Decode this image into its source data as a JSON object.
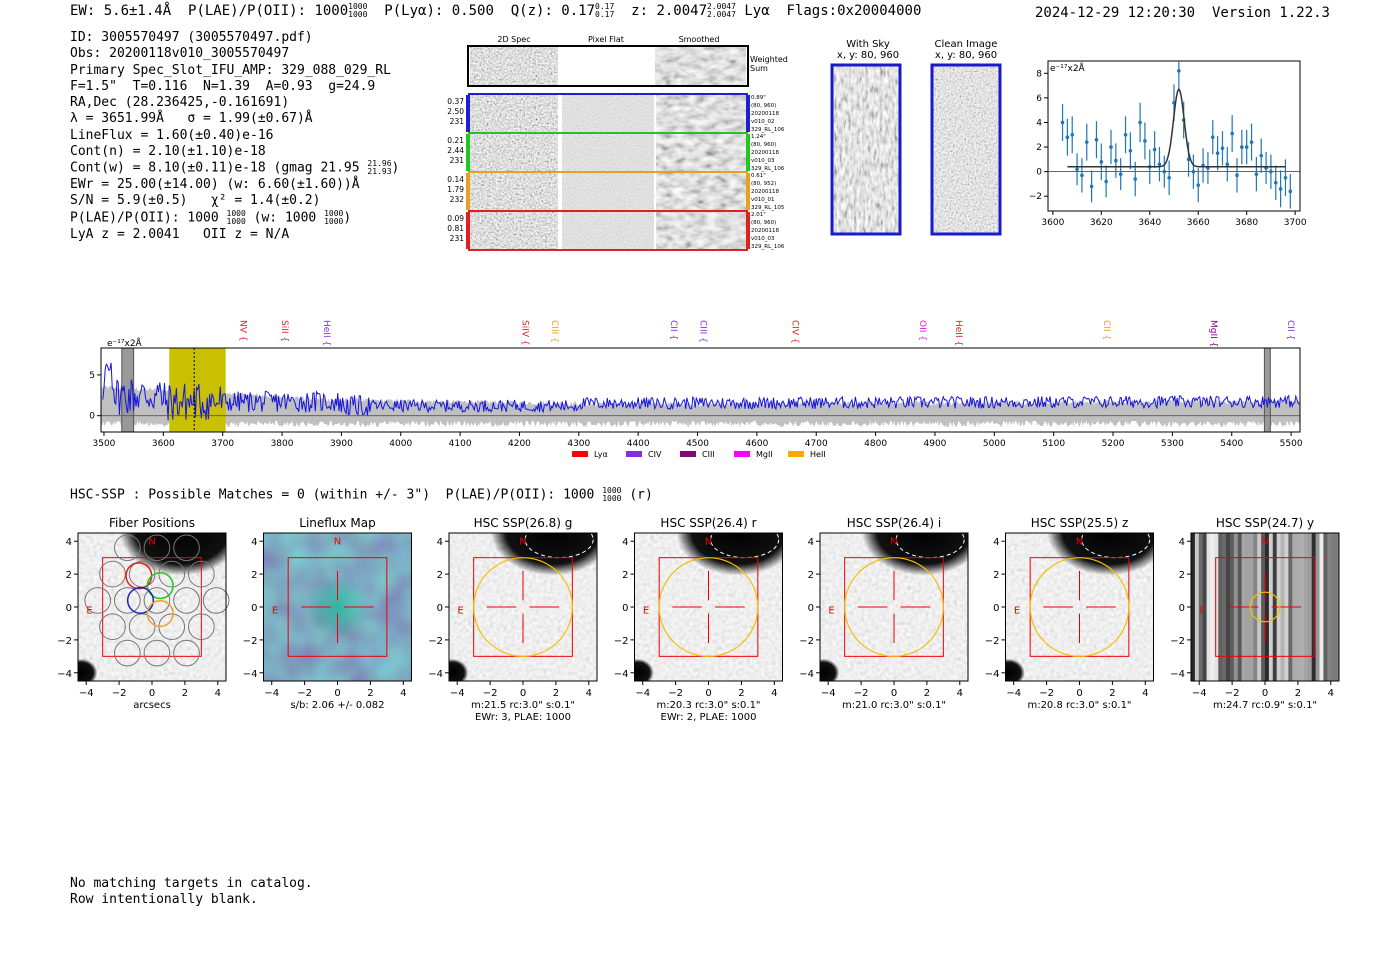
{
  "header": {
    "ew": "EW: 5.6±1.4Å",
    "plae": "P(LAE)/P(OII): 1000",
    "plae_hi": "1000",
    "plae_lo": "1000",
    "plya": "P(Lyα): 0.500",
    "qz": "Q(z): 0.17",
    "qz_hi": "0.17",
    "qz_lo": "0.17",
    "z": "z: 2.0047",
    "z_hi": "2.0047",
    "z_lo": "2.0047",
    "line": "Lyα",
    "flags": "Flags:0x20004000",
    "timestamp": "2024-12-29 12:20:30",
    "version": "Version 1.22.3"
  },
  "info": {
    "id": "ID: 3005570497 (3005570497.pdf)",
    "obs": "Obs: 20200118v010_3005570497",
    "primary": "Primary Spec_Slot_IFU_AMP: 329_088_029_RL",
    "fwhm": "F=1.5\"  T=0.116  N=1.39  A=0.93  g=24.9",
    "radec": "RA,Dec (28.236425,-0.161691)",
    "wave": "λ = 3651.99Å   σ = 1.99(±0.67)Å",
    "lineflux": "LineFlux = 1.60(±0.40)e-16",
    "contn": "Cont(n) = 2.10(±1.10)e-18",
    "contw": "Cont(w) = 8.10(±0.11)e-18 (gmag 21.95",
    "contw_hi": "21.96",
    "contw_lo": "21.93",
    "contw_end": ")",
    "ewr": "EWr = 25.00(±14.00) (w: 6.60(±1.60))Å",
    "sn": "S/N = 5.9(±0.5)   χ² = 1.4(±0.2)",
    "plae": "P(LAE)/P(OII): 1000",
    "plae_hi": "1000",
    "plae_lo": "1000",
    "plae_w": "(w: 1000",
    "plae_w_hi": "1000",
    "plae_w_lo": "1000",
    "plae_end": ")",
    "lyaz": "LyA z = 2.0041   OII z = N/A"
  },
  "cutouts": {
    "col_titles": [
      "2D Spec",
      "Pixel Flat",
      "Smoothed"
    ],
    "weighted_label": "Weighted Sum",
    "rows": [
      {
        "color": "#1f1fd0",
        "left": [
          "0.37",
          "2.50",
          "231"
        ],
        "right": [
          "0.89\"",
          "(80, 960)",
          "20200118",
          "v010_02",
          "329_RL_106"
        ]
      },
      {
        "color": "#22c522",
        "left": [
          "0.21",
          "2.44",
          "231"
        ],
        "right": [
          "1.24\"",
          "(80, 960)",
          "20200118",
          "v010_03",
          "329_RL_106"
        ]
      },
      {
        "color": "#e8a020",
        "left": [
          "0.14",
          "1.79",
          "232"
        ],
        "right": [
          "0.61\"",
          "(80, 952)",
          "20200118",
          "v010_01",
          "329_RL_105"
        ]
      },
      {
        "color": "#e02020",
        "left": [
          "0.09",
          "0.81",
          "231"
        ],
        "right": [
          "2.01\"",
          "(80, 960)",
          "20200118",
          "v010_03",
          "329_RL_106"
        ]
      }
    ],
    "with_sky_title": "With Sky",
    "with_sky_sub": "x, y: 80, 960",
    "clean_title": "Clean Image",
    "clean_sub": "x, y: 80, 960"
  },
  "hsc_line": {
    "text": "HSC-SSP : Possible Matches = 0 (within +/- 3\")  P(LAE)/P(OII): 1000",
    "hi": "1000",
    "lo": "1000",
    "end": "(r)"
  },
  "footer": {
    "line1": "No matching targets in catalog.",
    "line2": "Row intentionally blank."
  },
  "chart_data": [
    {
      "type": "scatter",
      "name": "zoom-spectrum",
      "ylabel": "e⁻¹⁷x2Å",
      "xlim": [
        3598,
        3702
      ],
      "ylim": [
        -3.2,
        9
      ],
      "xticks": [
        3600,
        3620,
        3640,
        3660,
        3680,
        3700
      ],
      "yticks": [
        -2,
        0,
        2,
        4,
        6,
        8
      ],
      "x": [
        3604,
        3606,
        3608,
        3610,
        3612,
        3614,
        3616,
        3618,
        3620,
        3622,
        3624,
        3626,
        3628,
        3630,
        3632,
        3634,
        3636,
        3638,
        3640,
        3642,
        3644,
        3646,
        3648,
        3650,
        3652,
        3654,
        3656,
        3658,
        3660,
        3662,
        3664,
        3666,
        3668,
        3670,
        3672,
        3674,
        3676,
        3678,
        3680,
        3682,
        3684,
        3686,
        3688,
        3690,
        3692,
        3694,
        3696,
        3698
      ],
      "y": [
        4.0,
        2.8,
        3.0,
        0.2,
        -0.3,
        2.4,
        -1.2,
        2.6,
        0.8,
        -0.8,
        2.0,
        0.9,
        -0.2,
        3.0,
        1.7,
        -0.6,
        4.0,
        2.5,
        0.4,
        1.8,
        0.6,
        0.0,
        -0.5,
        5.6,
        8.2,
        4.2,
        1.0,
        0.0,
        -1.1,
        0.5,
        0.3,
        2.8,
        1.5,
        1.9,
        0.6,
        3.1,
        -0.3,
        2.0,
        2.0,
        2.4,
        -0.2,
        1.3,
        0.3,
        0.0,
        -0.9,
        -1.4,
        -0.5,
        -1.6
      ],
      "yerr": [
        1.5,
        1.5,
        1.5,
        1.3,
        1.4,
        1.5,
        1.3,
        1.5,
        1.5,
        1.3,
        1.4,
        1.4,
        1.3,
        1.5,
        1.5,
        1.4,
        1.6,
        1.5,
        1.4,
        1.5,
        1.4,
        1.3,
        1.4,
        1.5,
        1.6,
        1.5,
        1.4,
        1.4,
        1.4,
        1.4,
        1.3,
        1.4,
        1.4,
        1.4,
        1.4,
        1.5,
        1.4,
        1.4,
        1.4,
        1.5,
        1.4,
        1.4,
        1.3,
        1.4,
        1.4,
        1.5,
        1.5,
        1.4
      ],
      "fit": {
        "baseline": 0.4,
        "amp": 6.3,
        "center": 3652,
        "sigma": 2.2,
        "range": [
          3606,
          3696
        ]
      }
    },
    {
      "type": "line",
      "name": "full-spectrum",
      "ylabel": "e⁻¹⁷x2Å",
      "xlim": [
        3495,
        5515
      ],
      "ylim": [
        -2,
        8.3
      ],
      "xticks": [
        3500,
        3600,
        3700,
        3800,
        3900,
        4000,
        4100,
        4200,
        4300,
        4400,
        4500,
        4600,
        4700,
        4800,
        4900,
        5000,
        5100,
        5200,
        5300,
        5400,
        5500
      ],
      "yticks": [
        0,
        5
      ],
      "highlight": {
        "from": 3610,
        "to": 3705,
        "color": "#c8c000"
      },
      "masked": [
        [
          3530,
          3550
        ],
        [
          5455,
          5465
        ]
      ],
      "line_marker": 3652,
      "lines": [
        {
          "label": "NV",
          "wave": 3725,
          "color": "#e02020"
        },
        {
          "label": "SiII",
          "wave": 3795,
          "color": "#e02020"
        },
        {
          "label": "HeII",
          "wave": 3866,
          "color": "#8a2be2"
        },
        {
          "label": "SiIV",
          "wave": 4200,
          "color": "#e02020"
        },
        {
          "label": "CIII",
          "wave": 4250,
          "color": "#f0a020"
        },
        {
          "label": "CII",
          "wave": 4450,
          "color": "#8a2be2"
        },
        {
          "label": "CIII",
          "wave": 4500,
          "color": "#8a2be2"
        },
        {
          "label": "CIV",
          "wave": 4655,
          "color": "#e02020"
        },
        {
          "label": "OII",
          "wave": 4870,
          "color": "#e020e0"
        },
        {
          "label": "HeII",
          "wave": 4930,
          "color": "#e02020"
        },
        {
          "label": "CII",
          "wave": 5180,
          "color": "#f0a020"
        },
        {
          "label": "MgII",
          "wave": 5360,
          "color": "#8a008a"
        },
        {
          "label": "CII",
          "wave": 5490,
          "color": "#8a2be2"
        }
      ],
      "legend": [
        {
          "label": "Lyα",
          "color": "#ff0000"
        },
        {
          "label": "CIV",
          "color": "#8a2be2"
        },
        {
          "label": "CIII",
          "color": "#7b0a7b"
        },
        {
          "label": "MgII",
          "color": "#ff00ff"
        },
        {
          "label": "HeII",
          "color": "#ffa500"
        }
      ]
    },
    {
      "type": "heatmap",
      "name": "imaging-cutouts",
      "xlim": [
        -4.5,
        4.5
      ],
      "ylim": [
        -4.5,
        4.5
      ],
      "ticks": [
        -4,
        -2,
        0,
        2,
        4
      ],
      "panels": [
        {
          "title": "Fiber Positions",
          "caption1": "arcsecs",
          "caption2": "",
          "style": "fiber"
        },
        {
          "title": "Lineflux Map",
          "caption1": "s/b: 2.06 +/- 0.082",
          "caption2": "",
          "style": "lineflux"
        },
        {
          "title": "HSC SSP(26.8) g",
          "caption1": "m:21.5 rc:3.0\"  s:0.1\"",
          "caption2": "EWr: 3, PLAE: 1000",
          "style": "hsc",
          "aperture": 3.0
        },
        {
          "title": "HSC SSP(26.4) r",
          "caption1": "m:20.3 rc:3.0\"  s:0.1\"",
          "caption2": "EWr: 2, PLAE: 1000",
          "style": "hsc",
          "aperture": 3.0
        },
        {
          "title": "HSC SSP(26.4) i",
          "caption1": "m:21.0 rc:3.0\"  s:0.1\"",
          "caption2": "",
          "style": "hsc",
          "aperture": 3.0
        },
        {
          "title": "HSC SSP(25.5) z",
          "caption1": "m:20.8 rc:3.0\"  s:0.1\"",
          "caption2": "",
          "style": "hsc",
          "aperture": 3.0
        },
        {
          "title": "HSC SSP(24.7) y",
          "caption1": "m:24.7 rc:0.9\"  s:0.1\"",
          "caption2": "",
          "style": "stripes",
          "aperture": 0.9
        }
      ],
      "north_label": "N",
      "east_label": "E"
    }
  ]
}
